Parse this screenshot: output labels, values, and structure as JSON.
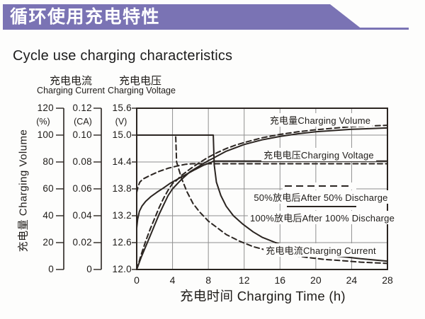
{
  "banner": {
    "title": "循环使用充电特性",
    "color": "#7a73b4"
  },
  "page_title": "Cycle use charging characteristics",
  "chart_data": {
    "type": "line",
    "column_headers": {
      "current_zh": "充电电流",
      "current_en": "Charging Current",
      "voltage_zh": "充电电压",
      "voltage_en": "Charging Voltage"
    },
    "axes": {
      "volume": {
        "label": "充电量 Charging Volume",
        "unit": "(%)",
        "ticks": [
          "120",
          "100",
          "80",
          "60",
          "40",
          "20",
          "0"
        ],
        "range": [
          0,
          120
        ]
      },
      "current": {
        "unit": "(CA)",
        "ticks": [
          "0.12",
          "0.10",
          "0.08",
          "0.06",
          "0.04",
          "0.02",
          "0"
        ],
        "range": [
          0,
          0.12
        ]
      },
      "voltage": {
        "unit": "(V)",
        "ticks": [
          "15.6",
          "15.0",
          "14.4",
          "13.8",
          "13.2",
          "12.6",
          "12.0"
        ],
        "range": [
          12.0,
          15.6
        ]
      },
      "x": {
        "label": "充电时间 Charging Time (h)",
        "ticks": [
          "0",
          "4",
          "8",
          "12",
          "16",
          "20",
          "24",
          "28"
        ],
        "range": [
          0,
          28
        ],
        "v_gridlines": [
          4,
          8,
          12,
          16,
          20,
          24
        ],
        "h_gridlines_voltage": [
          15.0,
          14.4,
          13.8,
          13.2,
          12.6
        ]
      }
    },
    "annotations": {
      "volume_label": "充电量Charging Volume",
      "voltage_label": "充电电压Charging Voltage",
      "current_label": "充电电流Charging Current"
    },
    "legend": [
      {
        "style": "dashed",
        "label": "50%放电后After 50% Discharge"
      },
      {
        "style": "solid",
        "label": "100%放电后After 100% Discharge"
      }
    ],
    "colors": {
      "line": "#2b2521",
      "grid": "#909090",
      "text": "#1e1b18"
    },
    "series": [
      {
        "name": "charging-volume-after-50pct-discharge",
        "axis": "volume",
        "style": "dashed",
        "points": [
          [
            0,
            0
          ],
          [
            0.5,
            11
          ],
          [
            1,
            21
          ],
          [
            1.5,
            30
          ],
          [
            2,
            38
          ],
          [
            2.5,
            46
          ],
          [
            3,
            53
          ],
          [
            3.5,
            59
          ],
          [
            4,
            64
          ],
          [
            4.4,
            66
          ],
          [
            5,
            70
          ],
          [
            6,
            75
          ],
          [
            7,
            79.5
          ],
          [
            8,
            83.5
          ],
          [
            9,
            87
          ],
          [
            10,
            90
          ],
          [
            11,
            92.5
          ],
          [
            12,
            94.5
          ],
          [
            14,
            98
          ],
          [
            16,
            100.5
          ],
          [
            18,
            102.5
          ],
          [
            20,
            104
          ],
          [
            24,
            106.3
          ],
          [
            28,
            107.3
          ]
        ]
      },
      {
        "name": "charging-volume-after-100pct-discharge",
        "axis": "volume",
        "style": "solid",
        "points": [
          [
            0,
            0
          ],
          [
            0.5,
            9
          ],
          [
            1,
            17
          ],
          [
            1.5,
            25
          ],
          [
            2,
            33
          ],
          [
            2.5,
            41
          ],
          [
            3,
            48
          ],
          [
            3.5,
            55
          ],
          [
            4,
            60
          ],
          [
            5,
            67
          ],
          [
            6,
            73
          ],
          [
            7,
            77
          ],
          [
            8,
            81
          ],
          [
            8.6,
            83
          ],
          [
            10,
            88
          ],
          [
            12,
            93
          ],
          [
            14,
            96.5
          ],
          [
            16,
            99
          ],
          [
            18,
            101
          ],
          [
            20,
            102.5
          ],
          [
            24,
            104.3
          ],
          [
            28,
            105.3
          ]
        ]
      },
      {
        "name": "charging-voltage-after-50pct-discharge",
        "axis": "voltage",
        "style": "dashed",
        "points": [
          [
            0,
            13.72
          ],
          [
            0.15,
            13.85
          ],
          [
            0.35,
            13.95
          ],
          [
            0.7,
            14.02
          ],
          [
            1.5,
            14.1
          ],
          [
            2.5,
            14.19
          ],
          [
            3.5,
            14.26
          ],
          [
            4.5,
            14.31
          ],
          [
            5.5,
            14.35
          ],
          [
            6.2,
            14.36
          ],
          [
            28,
            14.36
          ]
        ]
      },
      {
        "name": "charging-voltage-after-100pct-discharge",
        "axis": "voltage",
        "style": "solid",
        "points": [
          [
            0,
            12.92
          ],
          [
            0.1,
            13.12
          ],
          [
            0.3,
            13.3
          ],
          [
            0.6,
            13.42
          ],
          [
            1,
            13.52
          ],
          [
            1.6,
            13.63
          ],
          [
            2.3,
            13.73
          ],
          [
            3,
            13.82
          ],
          [
            3.7,
            13.92
          ],
          [
            4.5,
            14.01
          ],
          [
            5.5,
            14.12
          ],
          [
            6.5,
            14.23
          ],
          [
            7.5,
            14.33
          ],
          [
            8.3,
            14.39
          ],
          [
            8.6,
            14.42
          ],
          [
            28,
            14.42
          ]
        ]
      },
      {
        "name": "charging-current-after-50pct-discharge",
        "axis": "current",
        "style": "dashed",
        "points": [
          [
            0,
            0.1
          ],
          [
            4.35,
            0.1
          ],
          [
            4.45,
            0.08
          ],
          [
            5,
            0.068
          ],
          [
            5.6,
            0.058
          ],
          [
            6.3,
            0.049
          ],
          [
            7,
            0.043
          ],
          [
            8,
            0.036
          ],
          [
            9,
            0.031
          ],
          [
            10,
            0.026
          ],
          [
            11.5,
            0.021
          ],
          [
            13,
            0.017
          ],
          [
            15,
            0.0135
          ],
          [
            17,
            0.011
          ],
          [
            19,
            0.009
          ],
          [
            21,
            0.0075
          ],
          [
            23,
            0.0065
          ],
          [
            25,
            0.0055
          ],
          [
            28,
            0.0045
          ]
        ]
      },
      {
        "name": "charging-current-after-100pct-discharge",
        "axis": "current",
        "style": "solid",
        "points": [
          [
            0,
            0.1
          ],
          [
            8.55,
            0.1
          ],
          [
            8.65,
            0.078
          ],
          [
            8.9,
            0.065
          ],
          [
            9.4,
            0.055
          ],
          [
            10,
            0.047
          ],
          [
            10.8,
            0.04
          ],
          [
            11.8,
            0.034
          ],
          [
            13,
            0.028
          ],
          [
            14,
            0.024
          ],
          [
            15.5,
            0.02
          ],
          [
            17,
            0.0165
          ],
          [
            19,
            0.0135
          ],
          [
            21,
            0.011
          ],
          [
            23,
            0.0095
          ],
          [
            25,
            0.008
          ],
          [
            28,
            0.0062
          ]
        ]
      }
    ]
  }
}
